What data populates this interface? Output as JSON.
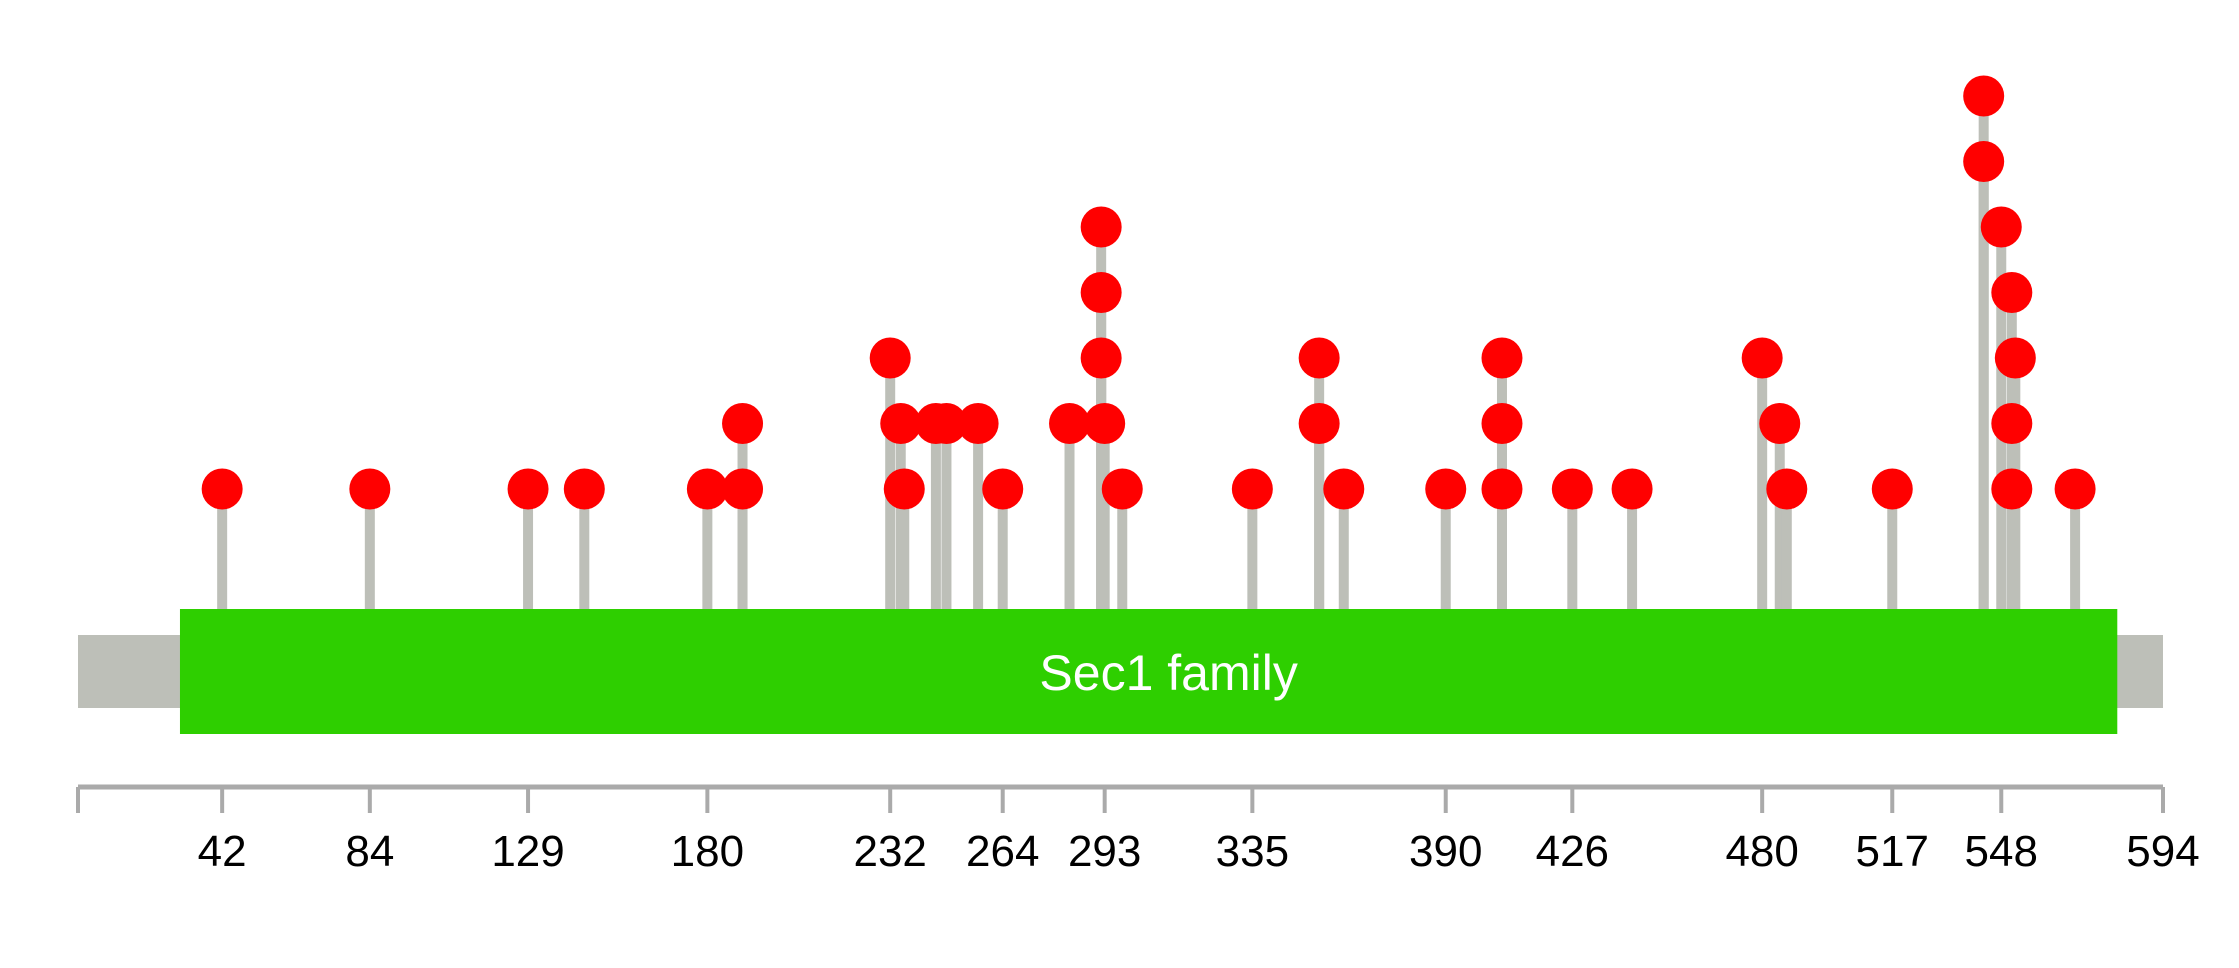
{
  "chart_data": {
    "type": "lollipop",
    "title": "",
    "xlabel": "",
    "ylabel": "",
    "protein_length": 594,
    "xlim": [
      1,
      594
    ],
    "tick_labels": [
      42,
      84,
      129,
      180,
      232,
      264,
      293,
      335,
      390,
      426,
      480,
      517,
      548,
      594
    ],
    "domains": [
      {
        "name": "Sec1 family",
        "start": 30,
        "end": 581,
        "color": "#2ECF00"
      }
    ],
    "colors": {
      "backbone": "#BDBFB8",
      "stem": "#BDBFB8",
      "dot": "#FF0000",
      "axis": "#AAAAAA"
    },
    "mutations": [
      {
        "pos": 42,
        "level": 1
      },
      {
        "pos": 84,
        "level": 1
      },
      {
        "pos": 129,
        "level": 1
      },
      {
        "pos": 145,
        "level": 1
      },
      {
        "pos": 180,
        "level": 1
      },
      {
        "pos": 190,
        "level": 1
      },
      {
        "pos": 190,
        "level": 2
      },
      {
        "pos": 232,
        "level": 3
      },
      {
        "pos": 235,
        "level": 2
      },
      {
        "pos": 236,
        "level": 1
      },
      {
        "pos": 245,
        "level": 2
      },
      {
        "pos": 248,
        "level": 2
      },
      {
        "pos": 257,
        "level": 2
      },
      {
        "pos": 264,
        "level": 1
      },
      {
        "pos": 283,
        "level": 2
      },
      {
        "pos": 292,
        "level": 5
      },
      {
        "pos": 292,
        "level": 4
      },
      {
        "pos": 292,
        "level": 3
      },
      {
        "pos": 293,
        "level": 2
      },
      {
        "pos": 298,
        "level": 1
      },
      {
        "pos": 335,
        "level": 1
      },
      {
        "pos": 354,
        "level": 3
      },
      {
        "pos": 354,
        "level": 2
      },
      {
        "pos": 361,
        "level": 1
      },
      {
        "pos": 390,
        "level": 1
      },
      {
        "pos": 406,
        "level": 3
      },
      {
        "pos": 406,
        "level": 2
      },
      {
        "pos": 406,
        "level": 1
      },
      {
        "pos": 426,
        "level": 1
      },
      {
        "pos": 443,
        "level": 1
      },
      {
        "pos": 480,
        "level": 3
      },
      {
        "pos": 485,
        "level": 2
      },
      {
        "pos": 487,
        "level": 1
      },
      {
        "pos": 517,
        "level": 1
      },
      {
        "pos": 543,
        "level": 7
      },
      {
        "pos": 543,
        "level": 6
      },
      {
        "pos": 548,
        "level": 5
      },
      {
        "pos": 551,
        "level": 4
      },
      {
        "pos": 552,
        "level": 3
      },
      {
        "pos": 551,
        "level": 2
      },
      {
        "pos": 551,
        "level": 1
      },
      {
        "pos": 569,
        "level": 1
      }
    ]
  }
}
